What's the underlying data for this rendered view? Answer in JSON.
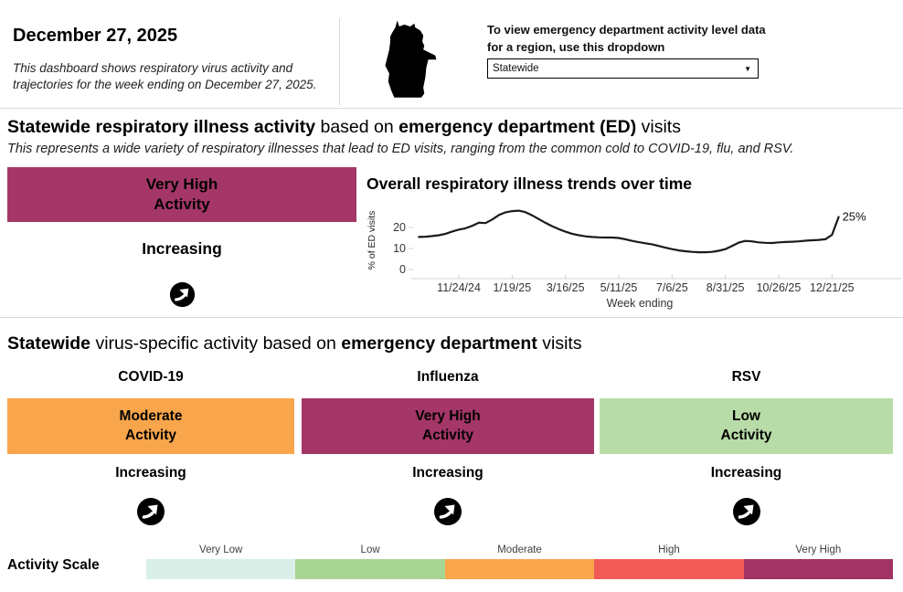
{
  "header": {
    "date_title": "December 27, 2025",
    "subtitle": "This dashboard shows respiratory virus activity and trajectories for the week ending on December 27, 2025.",
    "map_icon": "wisconsin-state-silhouette",
    "dropdown_instruction_line1": "To view emergency department activity level data",
    "dropdown_instruction_line2": "for a region, use this dropdown",
    "dropdown_value": "Statewide",
    "dropdown_caret": "▼"
  },
  "section_overall": {
    "title_bold1": "Statewide respiratory illness activity",
    "title_normal1": " based on ",
    "title_bold2": "emergency department (ED)",
    "title_normal2": " visits",
    "subtitle": "This represents a wide variety of respiratory illnesses that lead to ED visits, ranging from the common cold to COVID-19, flu, and RSV.",
    "activity_level_line1": "Very High",
    "activity_level_line2": "Activity",
    "activity_color": "#A43767",
    "trajectory": "Increasing",
    "trajectory_icon": "arrow-up-right",
    "chart_title": "Overall respiratory illness trends over time"
  },
  "chart_data": {
    "type": "line",
    "title": "Overall respiratory illness trends over time",
    "xlabel": "Week ending",
    "ylabel": "% of ED visits",
    "ylim": [
      0,
      30
    ],
    "y_ticks": [
      0,
      10,
      20
    ],
    "x_tick_labels": [
      "11/24/24",
      "1/19/25",
      "3/16/25",
      "5/11/25",
      "7/6/25",
      "8/31/25",
      "10/26/25",
      "12/21/25"
    ],
    "end_label": "25%",
    "line_color": "#1a1a1a",
    "x": [
      "10/13/24",
      "10/20/24",
      "10/27/24",
      "11/3/24",
      "11/10/24",
      "11/17/24",
      "11/24/24",
      "12/1/24",
      "12/8/24",
      "12/15/24",
      "12/22/24",
      "12/29/24",
      "1/5/25",
      "1/12/25",
      "1/19/25",
      "1/26/25",
      "2/2/25",
      "2/9/25",
      "2/16/25",
      "2/23/25",
      "3/2/25",
      "3/9/25",
      "3/16/25",
      "3/23/25",
      "3/30/25",
      "4/6/25",
      "4/13/25",
      "4/20/25",
      "4/27/25",
      "5/4/25",
      "5/11/25",
      "5/18/25",
      "5/25/25",
      "6/1/25",
      "6/8/25",
      "6/15/25",
      "6/22/25",
      "6/29/25",
      "7/6/25",
      "7/13/25",
      "7/20/25",
      "7/27/25",
      "8/3/25",
      "8/10/25",
      "8/17/25",
      "8/24/25",
      "8/31/25",
      "9/7/25",
      "9/14/25",
      "9/21/25",
      "9/28/25",
      "10/5/25",
      "10/12/25",
      "10/19/25",
      "10/26/25",
      "11/2/25",
      "11/9/25",
      "11/16/25",
      "11/23/25",
      "11/30/25",
      "12/7/25",
      "12/14/25",
      "12/21/25",
      "12/27/25"
    ],
    "values": [
      15.5,
      15.6,
      15.9,
      16.3,
      17.0,
      18.1,
      19.0,
      19.6,
      20.8,
      22.3,
      22.1,
      23.8,
      25.9,
      27.2,
      27.8,
      28.0,
      27.3,
      25.8,
      24.0,
      22.2,
      20.6,
      19.2,
      18.0,
      17.0,
      16.3,
      15.8,
      15.5,
      15.3,
      15.2,
      15.2,
      15.0,
      14.4,
      13.6,
      13.0,
      12.5,
      12.0,
      11.2,
      10.4,
      9.7,
      9.1,
      8.7,
      8.4,
      8.2,
      8.2,
      8.4,
      8.9,
      9.7,
      11.2,
      12.8,
      13.6,
      13.4,
      12.9,
      12.7,
      12.6,
      12.9,
      13.1,
      13.2,
      13.4,
      13.7,
      13.9,
      14.1,
      14.4,
      16.5,
      25.0
    ]
  },
  "section_virus": {
    "title_bold1": "Statewide",
    "title_normal1": " virus-specific activity based on ",
    "title_bold2": "emergency department",
    "title_normal2": " visits",
    "cards": [
      {
        "virus": "COVID-19",
        "level_line1": "Moderate",
        "level_line2": "Activity",
        "color": "#F8A54C",
        "trajectory": "Increasing",
        "icon": "arrow-up-right"
      },
      {
        "virus": "Influenza",
        "level_line1": "Very High",
        "level_line2": "Activity",
        "color": "#A43767",
        "trajectory": "Increasing",
        "icon": "arrow-up-right"
      },
      {
        "virus": "RSV",
        "level_line1": "Low",
        "level_line2": "Activity",
        "color": "#B8DCA8",
        "trajectory": "Increasing",
        "icon": "arrow-up-right"
      }
    ]
  },
  "activity_scale": {
    "label": "Activity Scale",
    "segments": [
      {
        "label": "Very Low",
        "color": "#D9EFE7"
      },
      {
        "label": "Low",
        "color": "#A8D493"
      },
      {
        "label": "Moderate",
        "color": "#F8A54C"
      },
      {
        "label": "High",
        "color": "#F25B57"
      },
      {
        "label": "Very High",
        "color": "#A23363"
      }
    ]
  }
}
